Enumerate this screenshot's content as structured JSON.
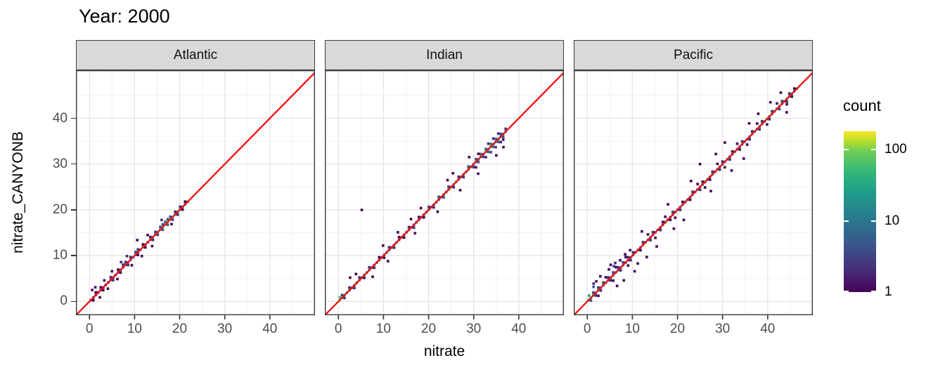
{
  "title": "Year: 2000",
  "axes": {
    "x_title": "nitrate",
    "y_title": "nitrate_CANYONB",
    "x_ticks": [
      0,
      10,
      20,
      30,
      40
    ],
    "y_ticks": [
      0,
      10,
      20,
      30,
      40
    ],
    "x_domain": [
      -3,
      50
    ],
    "y_domain": [
      -3,
      50.5
    ],
    "grid_major": [
      0,
      10,
      20,
      30,
      40
    ],
    "grid_minor": [
      5,
      15,
      25,
      35,
      45
    ]
  },
  "legend": {
    "title": "count",
    "scale": "log10",
    "domain": [
      1,
      180
    ],
    "ticks": [
      {
        "label": "1",
        "value": 1
      },
      {
        "label": "10",
        "value": 10
      },
      {
        "label": "100",
        "value": 100
      }
    ]
  },
  "colors": {
    "red_line": "#F10E0E",
    "strip_bg": "#D9D9D9",
    "panel_border": "#3B3B3B",
    "grid_major": "#E5E5E5",
    "grid_minor": "#F0F0F0",
    "axis_text": "#4D4D4D",
    "tick_mark": "#333333",
    "viridis_stops": [
      [
        0,
        "#440154"
      ],
      [
        0.125,
        "#482878"
      ],
      [
        0.25,
        "#3e4a89"
      ],
      [
        0.375,
        "#31688e"
      ],
      [
        0.5,
        "#26828e"
      ],
      [
        0.625,
        "#1f9e89"
      ],
      [
        0.75,
        "#35b779"
      ],
      [
        0.875,
        "#6ece58"
      ],
      [
        0.9375,
        "#b5de2b"
      ],
      [
        1,
        "#fde725"
      ]
    ]
  },
  "chart_data": {
    "type": "heatmap",
    "geom": "bin2d",
    "bin_size": 0.55,
    "identity_line": "y = x",
    "x_label": "nitrate",
    "y_label": "nitrate_CANYONB",
    "count_scale": {
      "type": "log10",
      "min": 1,
      "max": 180
    },
    "panels": [
      {
        "label": "Atlantic",
        "diagonal": {
          "x_start": 0.3,
          "step": 0.55,
          "counts": [
            2,
            3,
            2,
            2,
            3,
            2,
            3,
            2,
            4,
            4,
            5,
            4,
            6,
            5,
            6,
            5,
            7,
            6,
            8,
            7,
            6,
            8,
            7,
            9,
            8,
            12,
            16,
            22,
            30,
            45,
            80,
            110,
            60,
            38,
            24,
            16,
            12,
            8,
            6,
            4
          ]
        },
        "upper": [
          [
            1.4,
            1
          ],
          [
            2.5,
            1
          ],
          [
            4.7,
            2
          ],
          [
            6.35,
            1
          ],
          [
            7.45,
            2
          ],
          [
            8.0,
            2
          ],
          [
            9.1,
            2
          ],
          [
            10.2,
            3
          ],
          [
            10.75,
            2
          ],
          [
            11.85,
            1
          ],
          [
            13.5,
            2
          ],
          [
            14.6,
            3
          ],
          [
            15.7,
            4
          ],
          [
            16.25,
            4
          ],
          [
            16.8,
            6
          ],
          [
            17.35,
            5
          ],
          [
            17.9,
            4
          ],
          [
            19.0,
            2
          ],
          [
            20.1,
            2
          ],
          [
            21.2,
            1
          ]
        ],
        "lower": [
          [
            0.85,
            1
          ],
          [
            3.05,
            1
          ],
          [
            5.25,
            2
          ],
          [
            6.9,
            1
          ],
          [
            8.55,
            2
          ],
          [
            10.75,
            1
          ],
          [
            12.4,
            1
          ],
          [
            14.05,
            2
          ],
          [
            15.15,
            3
          ],
          [
            16.25,
            5
          ],
          [
            17.35,
            5
          ],
          [
            18.45,
            3
          ],
          [
            19.55,
            2
          ],
          [
            20.65,
            1
          ]
        ],
        "upper2": [],
        "lower2": [],
        "outliers": [
          [
            0.6,
            2.5,
            1
          ],
          [
            1.3,
            3.1,
            1
          ],
          [
            2.3,
            0.9,
            1
          ],
          [
            3.3,
            4.6,
            1
          ],
          [
            5.0,
            6.6,
            1
          ],
          [
            6.2,
            4.9,
            1
          ],
          [
            8.3,
            9.9,
            2
          ],
          [
            9.4,
            7.9,
            1
          ],
          [
            10.6,
            13.4,
            1
          ],
          [
            11.6,
            9.9,
            1
          ],
          [
            12.9,
            14.5,
            1
          ],
          [
            7.0,
            8.6,
            2
          ],
          [
            4.1,
            2.8,
            1
          ],
          [
            13.9,
            12.1,
            1
          ],
          [
            16.0,
            17.8,
            2
          ],
          [
            18.2,
            16.9,
            1
          ]
        ]
      },
      {
        "label": "Indian",
        "diagonal": {
          "x_start": 0.25,
          "step": 0.55,
          "counts": [
            90,
            45,
            25,
            15,
            12,
            10,
            12,
            9,
            11,
            8,
            10,
            9,
            12,
            8,
            10,
            7,
            9,
            6,
            8,
            7,
            9,
            6,
            8,
            7,
            5,
            7,
            6,
            8,
            5,
            7,
            6,
            8,
            7,
            9,
            6,
            8,
            7,
            10,
            9,
            12,
            10,
            14,
            12,
            16,
            12,
            15,
            11,
            14,
            10,
            12,
            9,
            11,
            13,
            16,
            14,
            18,
            22,
            20,
            26,
            30,
            35,
            40,
            45,
            38,
            32,
            26,
            18,
            10
          ]
        },
        "upper": [
          [
            0.8,
            3
          ],
          [
            2.45,
            2
          ],
          [
            4.65,
            2
          ],
          [
            6.85,
            2
          ],
          [
            9.05,
            1
          ],
          [
            11.25,
            2
          ],
          [
            13.45,
            1
          ],
          [
            15.65,
            2
          ],
          [
            17.85,
            1
          ],
          [
            20.05,
            2
          ],
          [
            22.25,
            3
          ],
          [
            24.45,
            2
          ],
          [
            26.65,
            2
          ],
          [
            28.85,
            3
          ],
          [
            30.5,
            4
          ],
          [
            31.6,
            5
          ],
          [
            32.7,
            6
          ],
          [
            33.8,
            8
          ],
          [
            34.9,
            6
          ],
          [
            36.0,
            4
          ],
          [
            37.1,
            2
          ]
        ],
        "lower": [
          [
            1.35,
            2
          ],
          [
            3.55,
            2
          ],
          [
            5.75,
            1
          ],
          [
            7.95,
            2
          ],
          [
            10.15,
            1
          ],
          [
            12.35,
            2
          ],
          [
            14.55,
            1
          ],
          [
            16.75,
            2
          ],
          [
            18.95,
            1
          ],
          [
            21.15,
            2
          ],
          [
            23.35,
            3
          ],
          [
            25.55,
            2
          ],
          [
            27.75,
            2
          ],
          [
            29.95,
            3
          ],
          [
            31.05,
            4
          ],
          [
            32.15,
            5
          ],
          [
            33.25,
            6
          ],
          [
            34.35,
            8
          ],
          [
            35.45,
            6
          ],
          [
            36.55,
            4
          ]
        ],
        "upper2": [
          [
            33.25,
            2
          ],
          [
            34.35,
            2
          ],
          [
            35.45,
            2
          ],
          [
            31.05,
            1
          ]
        ],
        "lower2": [
          [
            32.7,
            2
          ],
          [
            33.8,
            3
          ],
          [
            34.9,
            3
          ],
          [
            36.0,
            2
          ],
          [
            36.55,
            1
          ],
          [
            30.5,
            1
          ]
        ],
        "outliers": [
          [
            5.2,
            20.0,
            1
          ],
          [
            2.6,
            5.2,
            1
          ],
          [
            7.6,
            5.4,
            1
          ],
          [
            9.9,
            12.2,
            1
          ],
          [
            13.2,
            15.1,
            1
          ],
          [
            17.0,
            14.9,
            1
          ],
          [
            18.3,
            20.4,
            1
          ],
          [
            22.0,
            19.6,
            1
          ],
          [
            24.2,
            26.5,
            1
          ],
          [
            27.0,
            24.3,
            1
          ],
          [
            16.1,
            18.0,
            1
          ],
          [
            11.0,
            8.8,
            1
          ],
          [
            29.0,
            31.5,
            1
          ],
          [
            35.0,
            31.9,
            1
          ],
          [
            36.6,
            33.7,
            1
          ],
          [
            31.0,
            27.9,
            1
          ],
          [
            0.3,
            0.9,
            60
          ],
          [
            3.9,
            6.0,
            1
          ],
          [
            25.4,
            28.0,
            1
          ]
        ]
      },
      {
        "label": "Pacific",
        "diagonal": {
          "x_start": 0.25,
          "step": 0.55,
          "counts": [
            55,
            35,
            22,
            15,
            12,
            14,
            10,
            12,
            9,
            11,
            8,
            10,
            12,
            9,
            11,
            8,
            10,
            7,
            9,
            8,
            10,
            7,
            9,
            6,
            8,
            7,
            9,
            6,
            8,
            7,
            9,
            8,
            10,
            7,
            9,
            8,
            10,
            9,
            11,
            8,
            10,
            9,
            11,
            8,
            10,
            9,
            12,
            10,
            13,
            11,
            14,
            12,
            15,
            13,
            16,
            12,
            14,
            11,
            13,
            15,
            12,
            14,
            16,
            13,
            15,
            18,
            14,
            16,
            20,
            17,
            15,
            18,
            22,
            19,
            16,
            20,
            24,
            21,
            18,
            22,
            25,
            20,
            16,
            12,
            8
          ]
        },
        "upper": [
          [
            1.35,
            3
          ],
          [
            2.45,
            2
          ],
          [
            3.55,
            3
          ],
          [
            4.65,
            2
          ],
          [
            5.75,
            3
          ],
          [
            6.85,
            2
          ],
          [
            7.95,
            3
          ],
          [
            9.05,
            2
          ],
          [
            10.15,
            2
          ],
          [
            12.35,
            2
          ],
          [
            14.55,
            2
          ],
          [
            16.75,
            1
          ],
          [
            18.95,
            2
          ],
          [
            21.15,
            1
          ],
          [
            23.35,
            2
          ],
          [
            25.55,
            1
          ],
          [
            27.75,
            2
          ],
          [
            29.95,
            2
          ],
          [
            32.15,
            1
          ],
          [
            34.35,
            2
          ],
          [
            36.55,
            2
          ],
          [
            38.75,
            2
          ],
          [
            40.95,
            3
          ],
          [
            43.15,
            3
          ],
          [
            44.8,
            2
          ],
          [
            45.9,
            1
          ]
        ],
        "lower": [
          [
            0.8,
            4
          ],
          [
            1.9,
            2
          ],
          [
            3.0,
            2
          ],
          [
            5.2,
            2
          ],
          [
            7.4,
            2
          ],
          [
            9.6,
            2
          ],
          [
            11.8,
            1
          ],
          [
            14.0,
            2
          ],
          [
            16.2,
            2
          ],
          [
            18.4,
            1
          ],
          [
            20.6,
            2
          ],
          [
            22.8,
            1
          ],
          [
            25.0,
            2
          ],
          [
            27.2,
            1
          ],
          [
            29.4,
            2
          ],
          [
            31.6,
            2
          ],
          [
            33.8,
            1
          ],
          [
            36.0,
            2
          ],
          [
            38.2,
            2
          ],
          [
            40.4,
            2
          ],
          [
            42.6,
            3
          ],
          [
            44.25,
            2
          ],
          [
            45.35,
            1
          ]
        ],
        "upper2": [
          [
            4.1,
            1
          ],
          [
            6.3,
            1
          ],
          [
            8.5,
            1
          ],
          [
            13.45,
            1
          ],
          [
            17.3,
            1
          ],
          [
            24.45,
            1
          ],
          [
            28.85,
            1
          ],
          [
            33.25,
            1
          ],
          [
            37.65,
            1
          ],
          [
            42.05,
            1
          ]
        ],
        "lower2": [
          [
            2.45,
            1
          ],
          [
            5.75,
            1
          ],
          [
            9.05,
            1
          ],
          [
            15.1,
            1
          ],
          [
            19.5,
            1
          ],
          [
            26.1,
            1
          ],
          [
            30.5,
            1
          ],
          [
            35.45,
            1
          ],
          [
            39.85,
            1
          ],
          [
            44.25,
            1
          ]
        ],
        "outliers": [
          [
            25.0,
            30.0,
            1
          ],
          [
            30.5,
            34.7,
            1
          ],
          [
            10.5,
            6.6,
            1
          ],
          [
            13.2,
            9.7,
            1
          ],
          [
            34.7,
            31.2,
            1
          ],
          [
            8.1,
            4.6,
            1
          ],
          [
            27.4,
            24.1,
            1
          ],
          [
            40.6,
            43.5,
            1
          ],
          [
            5.2,
            8.0,
            1
          ],
          [
            17.9,
            21.2,
            1
          ],
          [
            21.4,
            17.8,
            1
          ],
          [
            32.0,
            28.6,
            1
          ],
          [
            37.9,
            41.0,
            1
          ],
          [
            2.9,
            5.5,
            1
          ],
          [
            44.2,
            41.3,
            1
          ],
          [
            12.1,
            15.3,
            1
          ],
          [
            23.0,
            26.3,
            1
          ],
          [
            6.6,
            3.4,
            1
          ],
          [
            28.5,
            32.2,
            1
          ],
          [
            15.4,
            12.0,
            1
          ],
          [
            0.4,
            1.3,
            30
          ],
          [
            1.4,
            3.2,
            4
          ],
          [
            1.4,
            3.9,
            2
          ],
          [
            2.0,
            4.4,
            1
          ],
          [
            4.8,
            7.0,
            1
          ],
          [
            6.2,
            8.4,
            2
          ],
          [
            7.3,
            9.0,
            1
          ],
          [
            5.9,
            7.7,
            3
          ],
          [
            8.4,
            10.3,
            1
          ],
          [
            9.5,
            11.2,
            1
          ],
          [
            11.2,
            8.3,
            1
          ],
          [
            19.2,
            15.9,
            1
          ],
          [
            35.9,
            38.9,
            1
          ],
          [
            42.9,
            45.6,
            1
          ]
        ]
      }
    ]
  }
}
